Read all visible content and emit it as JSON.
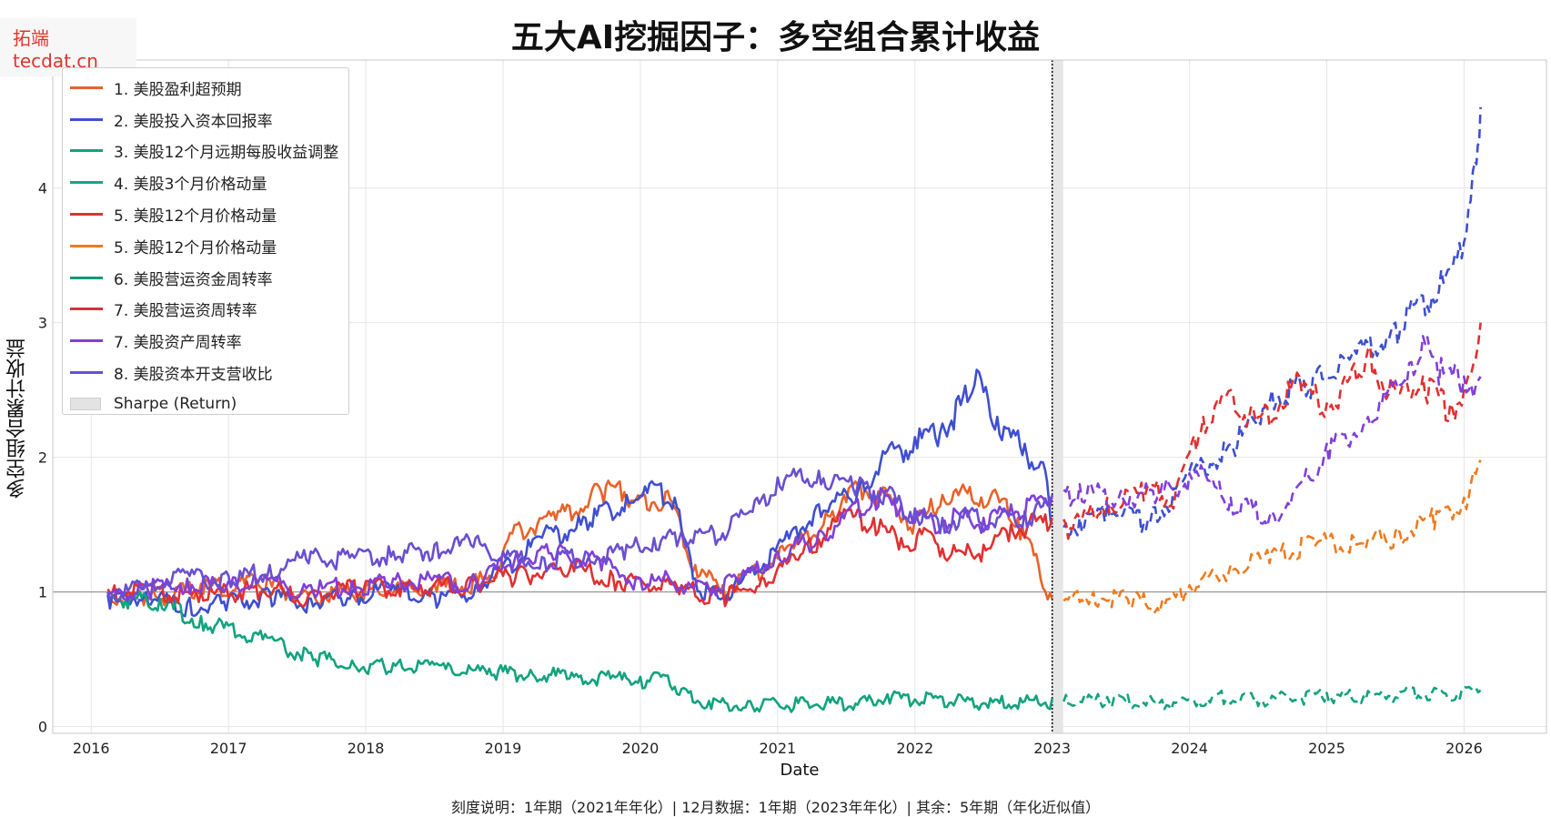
{
  "watermark": "拓端 tecdat.cn",
  "chart_data": {
    "type": "line",
    "title": "五大AI挖掘因子：多空组合累计收益",
    "xlabel": "Date",
    "ylabel": "多空组合累计收益",
    "footnote": "刻度说明：1年期（2021年年化）| 12月数据：1年期（2023年年化）| 其余：5年期（年化近似值）",
    "xlim": [
      2015.72,
      2026.6
    ],
    "ylim": [
      -0.05,
      4.95
    ],
    "x_ticks": [
      2016,
      2017,
      2018,
      2019,
      2020,
      2021,
      2022,
      2023,
      2024,
      2025,
      2026
    ],
    "y_ticks": [
      0,
      1,
      2,
      3,
      4
    ],
    "grid": true,
    "legend_position": "top-left",
    "reference_line_y": 1,
    "split_date": 2023.0,
    "shaded_band": [
      2023.0,
      2023.08
    ],
    "line_style_note": "solid before 2023, dashed after 2023",
    "series": [
      {
        "name": "1. 美股盈利超预期",
        "color": "#e8622a",
        "points": [
          [
            2016.12,
            1.0
          ],
          [
            2016.4,
            0.98
          ],
          [
            2016.8,
            1.06
          ],
          [
            2017.2,
            1.1
          ],
          [
            2017.6,
            1.0
          ],
          [
            2018.0,
            1.04
          ],
          [
            2018.5,
            1.06
          ],
          [
            2018.9,
            1.12
          ],
          [
            2019.1,
            1.5
          ],
          [
            2019.4,
            1.6
          ],
          [
            2019.7,
            1.78
          ],
          [
            2019.85,
            1.82
          ],
          [
            2020.0,
            1.7
          ],
          [
            2020.2,
            1.75
          ],
          [
            2020.4,
            1.2
          ],
          [
            2020.6,
            1.05
          ],
          [
            2020.8,
            1.15
          ],
          [
            2021.1,
            1.35
          ],
          [
            2021.4,
            1.6
          ],
          [
            2021.6,
            1.82
          ],
          [
            2021.8,
            1.72
          ],
          [
            2022.0,
            1.55
          ],
          [
            2022.2,
            1.72
          ],
          [
            2022.4,
            1.78
          ],
          [
            2022.6,
            1.72
          ],
          [
            2022.75,
            1.55
          ],
          [
            2022.9,
            1.2
          ],
          [
            2023.0,
            0.95
          ]
        ]
      },
      {
        "name": "2. 美股投入资本回报率",
        "color": "#3f4fd0",
        "points": [
          [
            2016.12,
            0.98
          ],
          [
            2016.4,
            1.0
          ],
          [
            2016.7,
            0.92
          ],
          [
            2017.0,
            0.95
          ],
          [
            2017.3,
            1.0
          ],
          [
            2017.6,
            0.95
          ],
          [
            2017.9,
            1.0
          ],
          [
            2018.2,
            1.05
          ],
          [
            2018.5,
            0.98
          ],
          [
            2018.8,
            1.05
          ],
          [
            2019.0,
            1.2
          ],
          [
            2019.3,
            1.45
          ],
          [
            2019.6,
            1.55
          ],
          [
            2019.9,
            1.72
          ],
          [
            2020.1,
            1.8
          ],
          [
            2020.25,
            1.7
          ],
          [
            2020.4,
            1.1
          ],
          [
            2020.55,
            1.0
          ],
          [
            2020.75,
            1.1
          ],
          [
            2021.0,
            1.35
          ],
          [
            2021.3,
            1.65
          ],
          [
            2021.6,
            1.8
          ],
          [
            2021.8,
            2.05
          ],
          [
            2022.0,
            2.15
          ],
          [
            2022.2,
            2.25
          ],
          [
            2022.35,
            2.45
          ],
          [
            2022.45,
            2.65
          ],
          [
            2022.6,
            2.3
          ],
          [
            2022.8,
            2.1
          ],
          [
            2022.95,
            1.9
          ],
          [
            2023.0,
            1.5
          ],
          [
            2023.2,
            1.55
          ],
          [
            2023.4,
            1.65
          ],
          [
            2023.7,
            1.55
          ],
          [
            2024.0,
            1.9
          ],
          [
            2024.3,
            2.1
          ],
          [
            2024.6,
            2.5
          ],
          [
            2024.9,
            2.6
          ],
          [
            2025.2,
            2.8
          ],
          [
            2025.5,
            3.0
          ],
          [
            2025.7,
            3.2
          ],
          [
            2025.9,
            3.4
          ],
          [
            2026.0,
            3.6
          ],
          [
            2026.08,
            4.2
          ],
          [
            2026.12,
            4.6
          ]
        ]
      },
      {
        "name": "3. 美股12个月远期每股收益调整",
        "color": "#13a27f",
        "points": [
          [
            2016.12,
            1.0
          ],
          [
            2016.3,
            0.98
          ],
          [
            2016.5,
            0.95
          ],
          [
            2016.8,
            0.82
          ],
          [
            2017.0,
            0.75
          ],
          [
            2017.3,
            0.66
          ],
          [
            2017.6,
            0.55
          ],
          [
            2017.9,
            0.49
          ],
          [
            2018.2,
            0.47
          ],
          [
            2018.5,
            0.46
          ],
          [
            2018.9,
            0.43
          ],
          [
            2019.2,
            0.42
          ],
          [
            2019.5,
            0.4
          ],
          [
            2019.8,
            0.38
          ],
          [
            2020.0,
            0.37
          ],
          [
            2020.2,
            0.38
          ],
          [
            2020.3,
            0.28
          ],
          [
            2020.5,
            0.19
          ],
          [
            2020.8,
            0.19
          ],
          [
            2021.2,
            0.19
          ],
          [
            2021.6,
            0.2
          ],
          [
            2021.8,
            0.24
          ],
          [
            2022.2,
            0.22
          ],
          [
            2022.6,
            0.2
          ],
          [
            2023.0,
            0.21
          ],
          [
            2023.4,
            0.22
          ],
          [
            2023.8,
            0.2
          ],
          [
            2024.2,
            0.24
          ],
          [
            2024.6,
            0.23
          ],
          [
            2025.0,
            0.25
          ],
          [
            2025.4,
            0.26
          ],
          [
            2025.8,
            0.28
          ],
          [
            2026.12,
            0.27
          ]
        ]
      },
      {
        "name": "4. 美股3个月价格动量",
        "color": "#12a58e",
        "points": []
      },
      {
        "name": "5. 美股12个月价格动量",
        "color": "#e03030",
        "points": [
          [
            2016.12,
            1.02
          ],
          [
            2016.4,
            1.05
          ],
          [
            2016.8,
            1.0
          ],
          [
            2017.2,
            1.05
          ],
          [
            2017.6,
            1.0
          ],
          [
            2018.0,
            1.08
          ],
          [
            2018.4,
            1.05
          ],
          [
            2018.8,
            1.1
          ],
          [
            2019.1,
            1.15
          ],
          [
            2019.5,
            1.22
          ],
          [
            2019.8,
            1.12
          ],
          [
            2020.0,
            1.1
          ],
          [
            2020.3,
            1.05
          ],
          [
            2020.6,
            1.0
          ],
          [
            2020.9,
            1.1
          ],
          [
            2021.2,
            1.35
          ],
          [
            2021.5,
            1.6
          ],
          [
            2021.7,
            1.55
          ],
          [
            2021.9,
            1.4
          ],
          [
            2022.1,
            1.45
          ],
          [
            2022.3,
            1.3
          ],
          [
            2022.5,
            1.35
          ],
          [
            2022.7,
            1.5
          ],
          [
            2022.9,
            1.55
          ],
          [
            2023.0,
            1.55
          ],
          [
            2023.1,
            1.5
          ],
          [
            2023.4,
            1.7
          ],
          [
            2023.7,
            1.8
          ],
          [
            2023.9,
            1.75
          ],
          [
            2024.1,
            2.3
          ],
          [
            2024.3,
            2.5
          ],
          [
            2024.5,
            2.3
          ],
          [
            2024.8,
            2.6
          ],
          [
            2025.0,
            2.4
          ],
          [
            2025.3,
            2.8
          ],
          [
            2025.5,
            2.5
          ],
          [
            2025.7,
            2.6
          ],
          [
            2025.9,
            2.4
          ],
          [
            2026.0,
            2.5
          ],
          [
            2026.12,
            3.0
          ]
        ]
      },
      {
        "name": "5. 美股12个月价格动量",
        "color": "#f07b1e",
        "points": [
          [
            2023.0,
            0.95
          ],
          [
            2023.3,
            1.0
          ],
          [
            2023.6,
            0.98
          ],
          [
            2023.8,
            0.93
          ],
          [
            2024.0,
            1.05
          ],
          [
            2024.3,
            1.2
          ],
          [
            2024.6,
            1.3
          ],
          [
            2024.9,
            1.4
          ],
          [
            2025.2,
            1.4
          ],
          [
            2025.5,
            1.45
          ],
          [
            2025.8,
            1.6
          ],
          [
            2026.0,
            1.7
          ],
          [
            2026.12,
            1.98
          ]
        ]
      },
      {
        "name": "6. 美股营运资金周转率",
        "color": "#0f9977",
        "points": []
      },
      {
        "name": "7. 美股营运资周转率",
        "color": "#d7303f",
        "points": []
      },
      {
        "name": "7. 美股资产周转率",
        "color": "#8040d8",
        "points": [
          [
            2016.12,
            1.0
          ],
          [
            2016.4,
            1.05
          ],
          [
            2016.7,
            1.1
          ],
          [
            2017.0,
            1.08
          ],
          [
            2017.3,
            1.1
          ],
          [
            2017.6,
            1.05
          ],
          [
            2017.9,
            1.08
          ],
          [
            2018.2,
            1.1
          ],
          [
            2018.5,
            1.12
          ],
          [
            2018.8,
            1.1
          ],
          [
            2019.1,
            1.3
          ],
          [
            2019.4,
            1.32
          ],
          [
            2019.7,
            1.25
          ],
          [
            2020.0,
            1.1
          ],
          [
            2020.2,
            1.12
          ],
          [
            2020.4,
            1.05
          ],
          [
            2020.7,
            1.1
          ],
          [
            2021.0,
            1.3
          ],
          [
            2021.3,
            1.45
          ],
          [
            2021.5,
            1.6
          ],
          [
            2021.7,
            1.75
          ],
          [
            2021.9,
            1.65
          ],
          [
            2022.1,
            1.55
          ],
          [
            2022.3,
            1.6
          ],
          [
            2022.5,
            1.55
          ],
          [
            2022.7,
            1.65
          ],
          [
            2022.9,
            1.7
          ],
          [
            2023.0,
            1.72
          ],
          [
            2023.2,
            1.8
          ],
          [
            2023.5,
            1.75
          ],
          [
            2023.8,
            1.8
          ],
          [
            2024.1,
            1.9
          ],
          [
            2024.3,
            1.7
          ],
          [
            2024.6,
            1.6
          ],
          [
            2024.8,
            1.8
          ],
          [
            2025.0,
            2.1
          ],
          [
            2025.3,
            2.3
          ],
          [
            2025.6,
            2.7
          ],
          [
            2025.7,
            2.9
          ],
          [
            2025.8,
            2.7
          ],
          [
            2026.0,
            2.6
          ],
          [
            2026.12,
            2.6
          ]
        ]
      },
      {
        "name": "8. 美股资本开支营收比",
        "color": "#6a4fd0",
        "points": [
          [
            2016.12,
            1.0
          ],
          [
            2016.4,
            1.08
          ],
          [
            2016.7,
            1.15
          ],
          [
            2017.0,
            1.12
          ],
          [
            2017.3,
            1.2
          ],
          [
            2017.6,
            1.3
          ],
          [
            2017.9,
            1.28
          ],
          [
            2018.2,
            1.3
          ],
          [
            2018.5,
            1.35
          ],
          [
            2018.8,
            1.4
          ],
          [
            2019.0,
            1.3
          ],
          [
            2019.3,
            1.25
          ],
          [
            2019.6,
            1.3
          ],
          [
            2019.9,
            1.35
          ],
          [
            2020.1,
            1.4
          ],
          [
            2020.3,
            1.45
          ],
          [
            2020.5,
            1.45
          ],
          [
            2020.8,
            1.6
          ],
          [
            2021.0,
            1.85
          ],
          [
            2021.3,
            1.9
          ],
          [
            2021.6,
            1.85
          ],
          [
            2021.8,
            1.75
          ],
          [
            2022.0,
            1.62
          ],
          [
            2022.2,
            1.55
          ],
          [
            2022.4,
            1.6
          ],
          [
            2022.6,
            1.55
          ],
          [
            2022.8,
            1.6
          ],
          [
            2023.0,
            1.7
          ]
        ]
      },
      {
        "name": "Sharpe (Return)",
        "type": "band",
        "color": "#e3e3e3",
        "points": []
      }
    ]
  }
}
